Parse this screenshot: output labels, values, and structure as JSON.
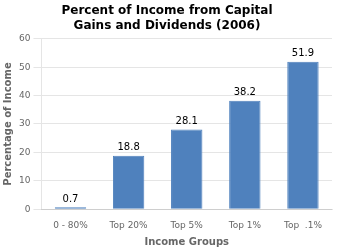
{
  "chart_data": {
    "type": "bar",
    "title": "Percent of Income from Capital\nGains and Dividends (2006)",
    "xlabel": "Income Groups",
    "ylabel": "Percentage of Income",
    "categories": [
      "0 - 80%",
      "Top 20%",
      "Top 5%",
      "Top 1%",
      "Top  .1%"
    ],
    "values": [
      0.7,
      18.8,
      28.1,
      38.2,
      51.9
    ],
    "color": "#4f81bd",
    "ylim": [
      0,
      60
    ],
    "yticks": [
      0,
      10,
      20,
      30,
      40,
      50,
      60
    ],
    "grid": true,
    "data_labels": true
  }
}
